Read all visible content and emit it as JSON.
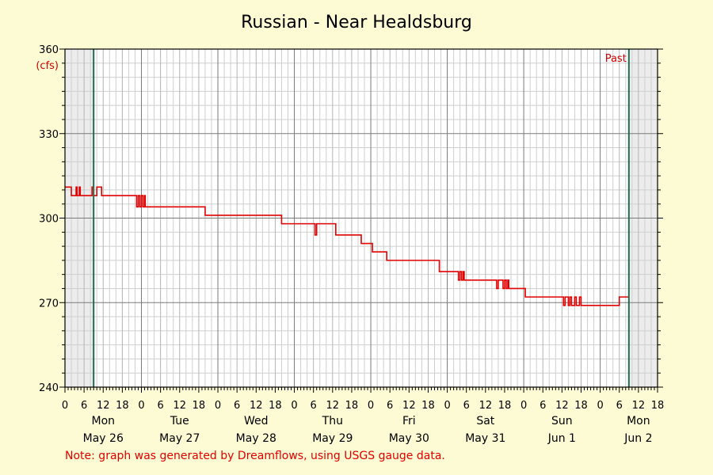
{
  "chart_data": {
    "type": "line",
    "title": "Russian - Near Healdsburg",
    "ylabel": "(cfs)",
    "ylim": [
      240,
      360
    ],
    "yticks": [
      240,
      270,
      300,
      330,
      360
    ],
    "xlim_hours": [
      0,
      186
    ],
    "hour_tick_labels": [
      "0",
      "6",
      "12",
      "18",
      "0",
      "6",
      "12",
      "18",
      "0",
      "6",
      "12",
      "18",
      "0",
      "6",
      "12",
      "18",
      "0",
      "6",
      "12",
      "18",
      "0",
      "6",
      "12",
      "18",
      "0",
      "6",
      "12",
      "18",
      "0",
      "6",
      "12",
      "18"
    ],
    "days": [
      {
        "day": "Mon",
        "date": "May 26"
      },
      {
        "day": "Tue",
        "date": "May 27"
      },
      {
        "day": "Wed",
        "date": "May 28"
      },
      {
        "day": "Thu",
        "date": "May 29"
      },
      {
        "day": "Fri",
        "date": "May 30"
      },
      {
        "day": "Sat",
        "date": "May 31"
      },
      {
        "day": "Sun",
        "date": "Jun 1"
      },
      {
        "day": "Mon",
        "date": "Jun 2"
      }
    ],
    "past_marker_label": "Past",
    "series": [
      {
        "color": "#e00000",
        "points": [
          [
            0,
            311
          ],
          [
            2,
            311
          ],
          [
            2,
            308
          ],
          [
            3.5,
            308
          ],
          [
            3.5,
            311
          ],
          [
            3.8,
            311
          ],
          [
            3.8,
            308
          ],
          [
            4.5,
            308
          ],
          [
            4.5,
            311
          ],
          [
            4.8,
            311
          ],
          [
            4.8,
            308
          ],
          [
            8.5,
            308
          ],
          [
            8.5,
            311
          ],
          [
            9,
            311
          ],
          [
            9,
            308
          ],
          [
            10,
            308
          ],
          [
            10,
            311
          ],
          [
            11.5,
            311
          ],
          [
            11.5,
            308
          ],
          [
            22.5,
            308
          ],
          [
            22.5,
            304
          ],
          [
            23,
            304
          ],
          [
            23,
            308
          ],
          [
            23.5,
            308
          ],
          [
            23.5,
            304
          ],
          [
            24,
            304
          ],
          [
            24,
            308
          ],
          [
            24.5,
            308
          ],
          [
            24.5,
            304
          ],
          [
            25,
            304
          ],
          [
            25,
            308
          ],
          [
            25.2,
            308
          ],
          [
            25.2,
            304
          ],
          [
            44,
            304
          ],
          [
            44,
            301
          ],
          [
            68,
            301
          ],
          [
            68,
            298
          ],
          [
            78.5,
            298
          ],
          [
            78.5,
            294
          ],
          [
            79,
            294
          ],
          [
            79,
            298
          ],
          [
            85,
            298
          ],
          [
            85,
            294
          ],
          [
            93,
            294
          ],
          [
            93,
            291
          ],
          [
            96.5,
            291
          ],
          [
            96.5,
            288
          ],
          [
            101,
            288
          ],
          [
            101,
            285
          ],
          [
            117.5,
            285
          ],
          [
            117.5,
            281
          ],
          [
            123.5,
            281
          ],
          [
            123.5,
            278
          ],
          [
            124,
            278
          ],
          [
            124,
            281
          ],
          [
            124.5,
            281
          ],
          [
            124.5,
            278
          ],
          [
            125,
            278
          ],
          [
            125,
            281
          ],
          [
            125.3,
            281
          ],
          [
            125.3,
            278
          ],
          [
            135.5,
            278
          ],
          [
            135.5,
            275
          ],
          [
            136,
            275
          ],
          [
            136,
            278
          ],
          [
            137.5,
            278
          ],
          [
            137.5,
            275
          ],
          [
            138,
            275
          ],
          [
            138,
            278
          ],
          [
            138.5,
            278
          ],
          [
            138.5,
            275
          ],
          [
            139,
            275
          ],
          [
            139,
            278
          ],
          [
            139.3,
            278
          ],
          [
            139.3,
            275
          ],
          [
            144.5,
            275
          ],
          [
            144.5,
            272
          ],
          [
            156.5,
            272
          ],
          [
            156.5,
            269
          ],
          [
            157,
            269
          ],
          [
            157,
            272
          ],
          [
            158,
            272
          ],
          [
            158,
            269
          ],
          [
            158.5,
            269
          ],
          [
            158.5,
            272
          ],
          [
            159,
            272
          ],
          [
            159,
            269
          ],
          [
            160,
            269
          ],
          [
            160,
            272
          ],
          [
            160.5,
            272
          ],
          [
            160.5,
            269
          ],
          [
            161.5,
            269
          ],
          [
            161.5,
            272
          ],
          [
            162,
            272
          ],
          [
            162,
            269
          ],
          [
            174,
            269
          ],
          [
            174,
            272
          ],
          [
            177,
            272
          ]
        ]
      }
    ],
    "note": "Note: graph was generated by Dreamflows, using USGS gauge data."
  }
}
